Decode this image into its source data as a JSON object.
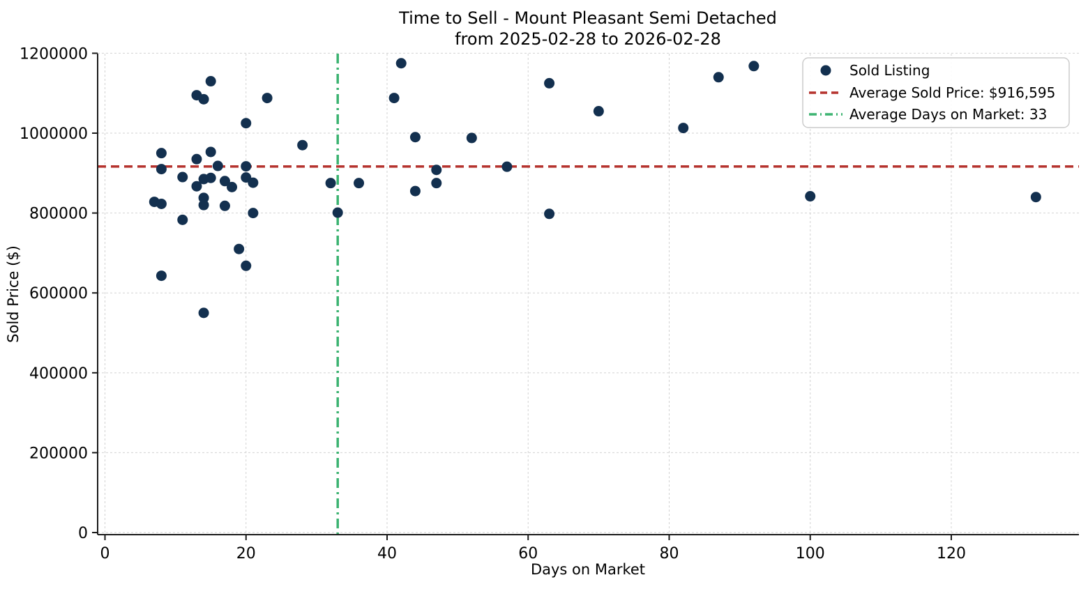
{
  "figure": {
    "title_line1": "Time to Sell - Mount Pleasant Semi Detached",
    "title_line2": "from 2025-02-28 to 2026-02-28"
  },
  "axes": {
    "xlabel": "Days on Market",
    "ylabel": "Sold Price ($)"
  },
  "legend": {
    "sold_listing_label": "Sold Listing",
    "avg_price_label": "Average Sold Price: $916,595",
    "avg_days_label": "Average Days on Market: 33"
  },
  "colors": {
    "point": "#13304f",
    "avg_price_line": "#b5322d",
    "avg_days_line": "#3cb371",
    "grid": "#d2d2d2",
    "spine": "#1a1a1a",
    "legend_border": "#cccccc"
  },
  "chart_data": {
    "type": "scatter",
    "title": "Time to Sell - Mount Pleasant Semi Detached\nfrom 2025-02-28 to 2026-02-28",
    "xlabel": "Days on Market",
    "ylabel": "Sold Price ($)",
    "xlim": [
      -1.04,
      138.1
    ],
    "ylim": [
      -5200,
      1199000
    ],
    "x_ticks": [
      0,
      20,
      40,
      60,
      80,
      100,
      120
    ],
    "y_ticks": [
      0,
      200000,
      400000,
      600000,
      800000,
      1000000,
      1200000
    ],
    "grid": true,
    "legend_position": "upper right",
    "series": [
      {
        "name": "Sold Listing",
        "type": "scatter",
        "color": "#13304f",
        "points": [
          [
            7,
            828000
          ],
          [
            8,
            950000
          ],
          [
            8,
            910000
          ],
          [
            8,
            823000
          ],
          [
            8,
            643000
          ],
          [
            11,
            890000
          ],
          [
            11,
            783000
          ],
          [
            13,
            1095000
          ],
          [
            13,
            935000
          ],
          [
            13,
            867000
          ],
          [
            14,
            1085000
          ],
          [
            14,
            885000
          ],
          [
            14,
            838000
          ],
          [
            14,
            820000
          ],
          [
            14,
            550000
          ],
          [
            15,
            1130000
          ],
          [
            15,
            953000
          ],
          [
            15,
            888000
          ],
          [
            16,
            918000
          ],
          [
            17,
            880000
          ],
          [
            17,
            818000
          ],
          [
            18,
            865000
          ],
          [
            19,
            710000
          ],
          [
            20,
            1025000
          ],
          [
            20,
            917000
          ],
          [
            20,
            889000
          ],
          [
            20,
            668000
          ],
          [
            21,
            876000
          ],
          [
            21,
            800000
          ],
          [
            23,
            1088000
          ],
          [
            28,
            970000
          ],
          [
            32,
            875000
          ],
          [
            33,
            801000
          ],
          [
            36,
            875000
          ],
          [
            41,
            1088000
          ],
          [
            42,
            1175000
          ],
          [
            44,
            990000
          ],
          [
            44,
            855000
          ],
          [
            47,
            908000
          ],
          [
            47,
            875000
          ],
          [
            52,
            988000
          ],
          [
            57,
            916000
          ],
          [
            63,
            1125000
          ],
          [
            63,
            798000
          ],
          [
            70,
            1055000
          ],
          [
            82,
            1013000
          ],
          [
            87,
            1140000
          ],
          [
            92,
            1168000
          ],
          [
            100,
            842000
          ],
          [
            132,
            840000
          ]
        ]
      },
      {
        "name": "Average Sold Price: $916,595",
        "type": "hline",
        "value": 916595,
        "color": "#b5322d",
        "style": "dashed"
      },
      {
        "name": "Average Days on Market: 33",
        "type": "vline",
        "value": 33,
        "color": "#3cb371",
        "style": "dashdot"
      }
    ]
  }
}
